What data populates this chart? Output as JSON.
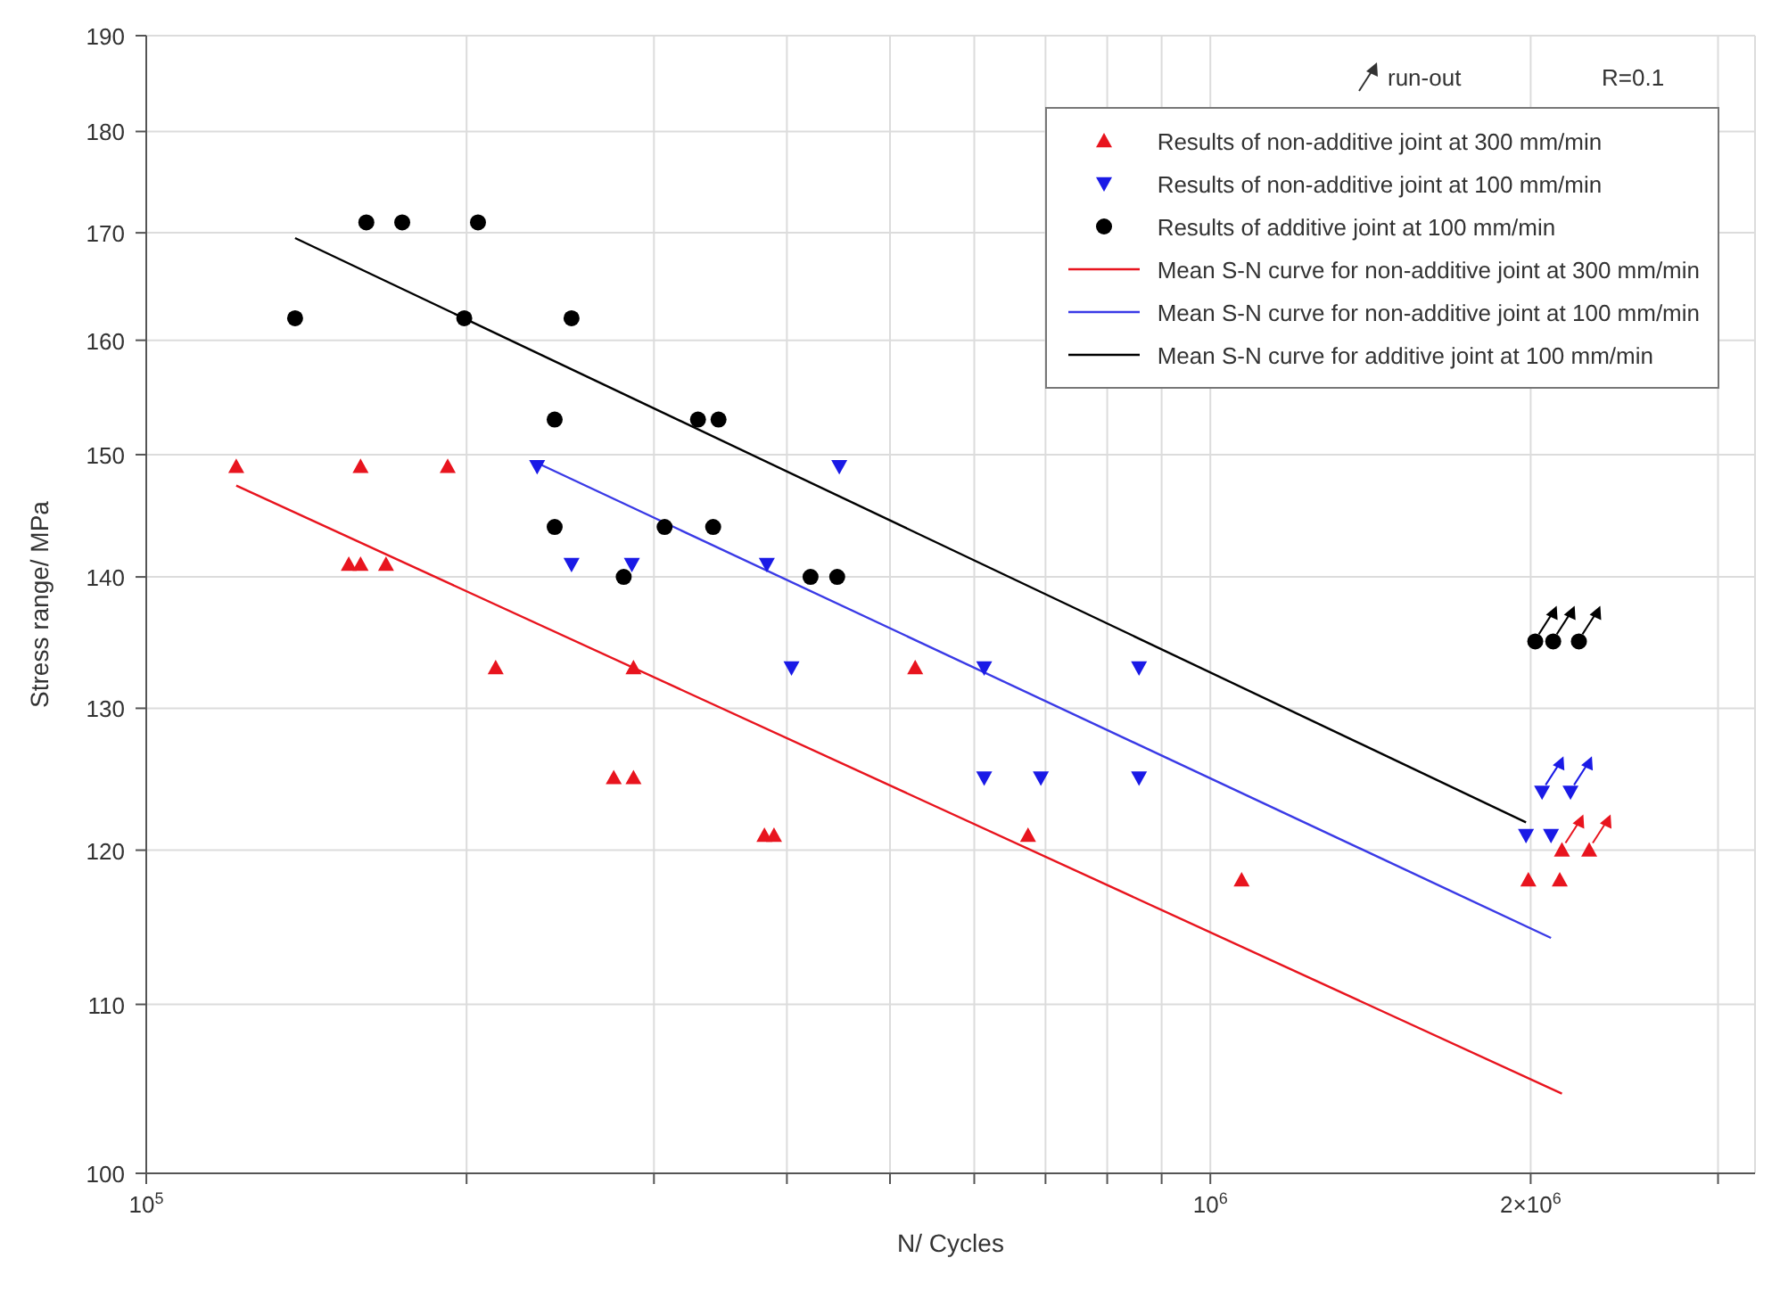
{
  "chart_data": {
    "type": "scatter",
    "xlabel": "N/ Cycles",
    "ylabel": "Stress range/ MPa",
    "log": "xy",
    "grid": true,
    "legend": "top right",
    "xlim": [
      100000,
      3250000
    ],
    "xticks": [
      {
        "value": 100000,
        "label": "10$^{5}$"
      },
      {
        "value": 200000,
        "label": null
      },
      {
        "value": 300000,
        "label": null
      },
      {
        "value": 400000,
        "label": null
      },
      {
        "value": 500000,
        "label": null
      },
      {
        "value": 600000,
        "label": null
      },
      {
        "value": 700000,
        "label": null
      },
      {
        "value": 800000,
        "label": null
      },
      {
        "value": 900000,
        "label": null
      },
      {
        "value": 1000000,
        "label": "10$^{6}$"
      },
      {
        "value": 2000000,
        "label": "2×10$^{6}$"
      },
      {
        "value": 3000000,
        "label": null
      }
    ],
    "ylim": [
      100,
      190
    ],
    "yticks": [
      100,
      110,
      120,
      130,
      140,
      150,
      160,
      170,
      180,
      190
    ],
    "annotations": [
      "run-out",
      "R=0.1"
    ],
    "series": [
      {
        "name": "Results of non-additive joint at 300 mm/min",
        "marker": "triangle",
        "color": "#e8141e",
        "x": [
          121500,
          159000,
          192000,
          155000,
          159000,
          168000,
          213000,
          287000,
          275000,
          287000,
          381000,
          389000,
          528000,
          674000,
          1070000,
          1990000,
          2130000
        ],
        "values": [
          149,
          149,
          149,
          141,
          141,
          141,
          133,
          133,
          125,
          125,
          121,
          121,
          133,
          121,
          118,
          118,
          118
        ]
      },
      {
        "name": "Results of non-additive joint at 100 mm/min",
        "marker": "triangle-down",
        "color": "#1a1ae6",
        "x": [
          233000,
          251000,
          286000,
          383000,
          448000,
          404000,
          613000,
          857000,
          613000,
          693000,
          857000,
          1980000,
          2090000
        ],
        "values": [
          149,
          141,
          141,
          141,
          149,
          133,
          133,
          133,
          125,
          125,
          125,
          121,
          121
        ]
      },
      {
        "name": "Results of additive joint at 100 mm/min",
        "marker": "circle",
        "color": "#000000",
        "x": [
          138000,
          161000,
          174000,
          205000,
          199000,
          251000,
          242000,
          330000,
          345000,
          242000,
          307000,
          341000,
          281000,
          421000,
          446000
        ],
        "values": [
          162,
          171,
          171,
          171,
          162,
          162,
          153,
          153,
          153,
          144,
          144,
          144,
          140,
          140,
          140
        ]
      },
      {
        "marker": "triangle",
        "color": "#e8141e",
        "x": [
          2140000,
          2270000
        ],
        "values": [
          120,
          120
        ]
      },
      {
        "marker": "triangle-down",
        "color": "#1a1ae6",
        "x": [
          2050000,
          2180000
        ],
        "values": [
          124,
          124
        ]
      },
      {
        "marker": "circle",
        "color": "#000000",
        "x": [
          2020000,
          2100000,
          2220000
        ],
        "values": [
          135,
          135,
          135
        ]
      },
      {
        "name": "Mean S-N curve for non-additive joint at 300 mm/min",
        "type": "line",
        "marker": "none",
        "color": "#e8141e",
        "x": [
          121500,
          2140000
        ],
        "values": [
          147.4,
          104.6
        ]
      },
      {
        "name": "Mean S-N curve for non-additive joint at 100 mm/min",
        "type": "line",
        "marker": "none",
        "color": "#3a3ae6",
        "x": [
          233000,
          2090000
        ],
        "values": [
          149.3,
          114.2
        ]
      },
      {
        "name": "Mean S-N curve for additive joint at 100 mm/min",
        "type": "line",
        "marker": "none",
        "color": "#000000",
        "x": [
          138000,
          1980000
        ],
        "values": [
          169.5,
          121.9
        ]
      }
    ]
  }
}
